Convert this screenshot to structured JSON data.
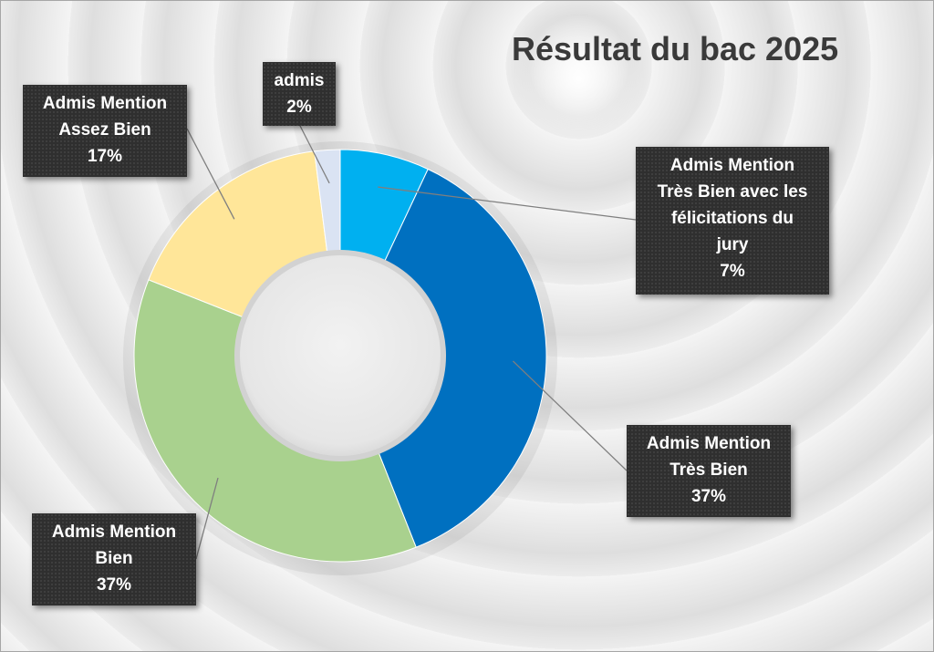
{
  "chart_data": {
    "type": "pie",
    "title": "Résultat du bac 2025",
    "slices": [
      {
        "name": "Admis Mention Très Bien avec les félicitations du jury",
        "label_lines": [
          "Admis Mention",
          "Très Bien avec les",
          "félicitations du",
          "jury"
        ],
        "value": 7,
        "display": "7%",
        "color": "#00b0f0"
      },
      {
        "name": "Admis Mention Très Bien",
        "label_lines": [
          "Admis Mention",
          "Très Bien"
        ],
        "value": 37,
        "display": "37%",
        "color": "#0070c0"
      },
      {
        "name": "Admis Mention Bien",
        "label_lines": [
          "Admis Mention",
          "Bien"
        ],
        "value": 37,
        "display": "37%",
        "color": "#a9d18e"
      },
      {
        "name": "Admis Mention Assez Bien",
        "label_lines": [
          "Admis Mention",
          "Assez Bien"
        ],
        "value": 17,
        "display": "17%",
        "color": "#ffe699"
      },
      {
        "name": "admis",
        "label_lines": [
          "admis"
        ],
        "value": 2,
        "display": "2%",
        "color": "#dae3f3"
      }
    ]
  }
}
